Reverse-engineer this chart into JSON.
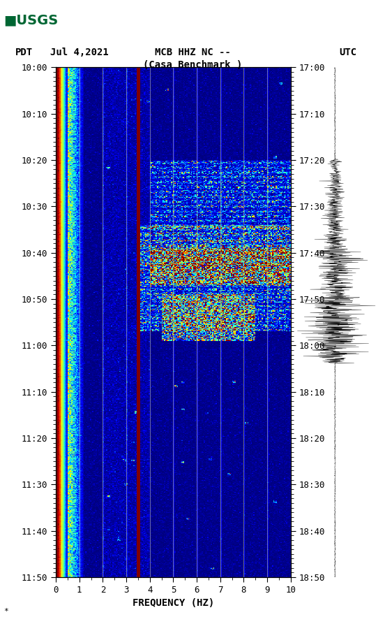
{
  "title_line1": "MCB HHZ NC --",
  "title_line2": "(Casa Benchmark )",
  "left_label": "PDT",
  "date_label": "Jul 4,2021",
  "right_label": "UTC",
  "xlabel": "FREQUENCY (HZ)",
  "freq_min": 0,
  "freq_max": 10,
  "freq_ticks": [
    0,
    1,
    2,
    3,
    4,
    5,
    6,
    7,
    8,
    9,
    10
  ],
  "time_start_pdt": "10:00",
  "time_end_pdt": "11:50",
  "time_start_utc": "17:00",
  "time_end_utc": "18:50",
  "left_time_labels": [
    "10:00",
    "10:10",
    "10:20",
    "10:30",
    "10:40",
    "10:50",
    "11:00",
    "11:10",
    "11:20",
    "11:30",
    "11:40",
    "11:50"
  ],
  "right_time_labels": [
    "17:00",
    "17:10",
    "17:20",
    "17:30",
    "17:40",
    "17:50",
    "18:00",
    "18:10",
    "18:20",
    "18:30",
    "18:40",
    "18:50"
  ],
  "bg_color": "#ffffff",
  "vertical_line_color": "#b4b478",
  "vertical_line_freq": [
    1,
    2,
    3,
    4,
    5,
    6,
    7,
    8,
    9
  ],
  "bright_vert_line_freq": 3.5,
  "usgs_green": "#006633",
  "colormap": "jet",
  "n_times": 660,
  "n_freqs": 200,
  "seed": 42,
  "tick_label_fontsize": 9,
  "axis_label_fontsize": 10,
  "title_fontsize": 10,
  "note_text": "*"
}
